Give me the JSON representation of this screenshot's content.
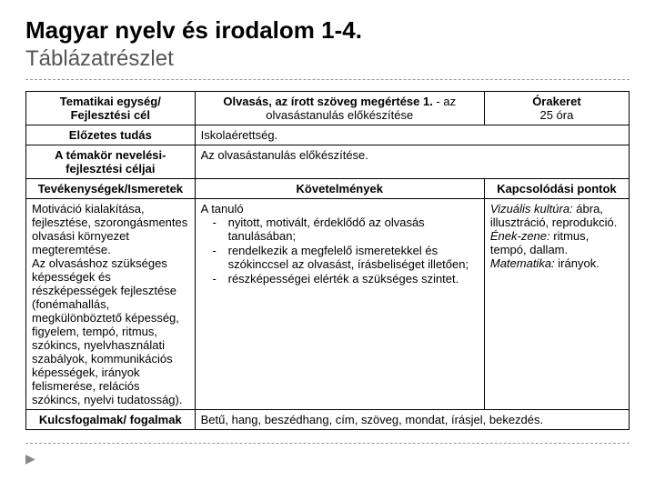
{
  "header": {
    "title": "Magyar nyelv és irodalom 1-4.",
    "subtitle": "Táblázatrészlet"
  },
  "table": {
    "row1": {
      "left_line1": "Tematikai egység/",
      "left_line2": "Fejlesztési cél",
      "mid_bold": "Olvasás, az írott szöveg megértése 1.",
      "mid_rest": " - az olvasástanulás előkészítése",
      "right_label": "Órakeret",
      "right_value": "25 óra"
    },
    "row2": {
      "left": "Előzetes tudás",
      "right": "Iskolaérettség."
    },
    "row3": {
      "left": "A témakör nevelési-fejlesztési céljai",
      "right": "Az olvasástanulás előkészítése."
    },
    "row4": {
      "h1": "Tevékenységek/Ismeretek",
      "h2": "Követelmények",
      "h3": "Kapcsolódási pontok"
    },
    "row5": {
      "activities": "Motiváció kialakítása, fejlesztése, szorongásmentes olvasási környezet megteremtése.\nAz olvasáshoz szükséges képességek és részképességek fejlesztése (fonémahallás, megkülönböztető képesség, figyelem, tempó, ritmus, szókincs, nyelvhasználati szabályok, kommunikációs képességek, irányok felismerése, relációs szókincs, nyelvi tudatosság).",
      "req_intro": "A tanuló",
      "req_items": [
        "nyitott, motivált, érdeklődő az olvasás tanulásában;",
        "rendelkezik a megfelelő ismeretekkel és szókinccsel az olvasást, írásbeliséget illetően;",
        "részképességei elérték a szükséges szintet."
      ],
      "links": [
        {
          "label": "Vizuális kultúra:",
          "text": " ábra, illusztráció, reprodukció."
        },
        {
          "label": "Ének-zene:",
          "text": " ritmus, tempó, dallam."
        },
        {
          "label": "Matematika:",
          "text": " irányok."
        }
      ]
    },
    "row6": {
      "left": "Kulcsfogalmak/ fogalmak",
      "right": "Betű, hang, beszédhang, cím, szöveg, mondat, írásjel, bekezdés."
    }
  },
  "colors": {
    "text": "#000000",
    "subtitle": "#555555",
    "border": "#000000",
    "divider": "#999999",
    "background": "#ffffff"
  }
}
